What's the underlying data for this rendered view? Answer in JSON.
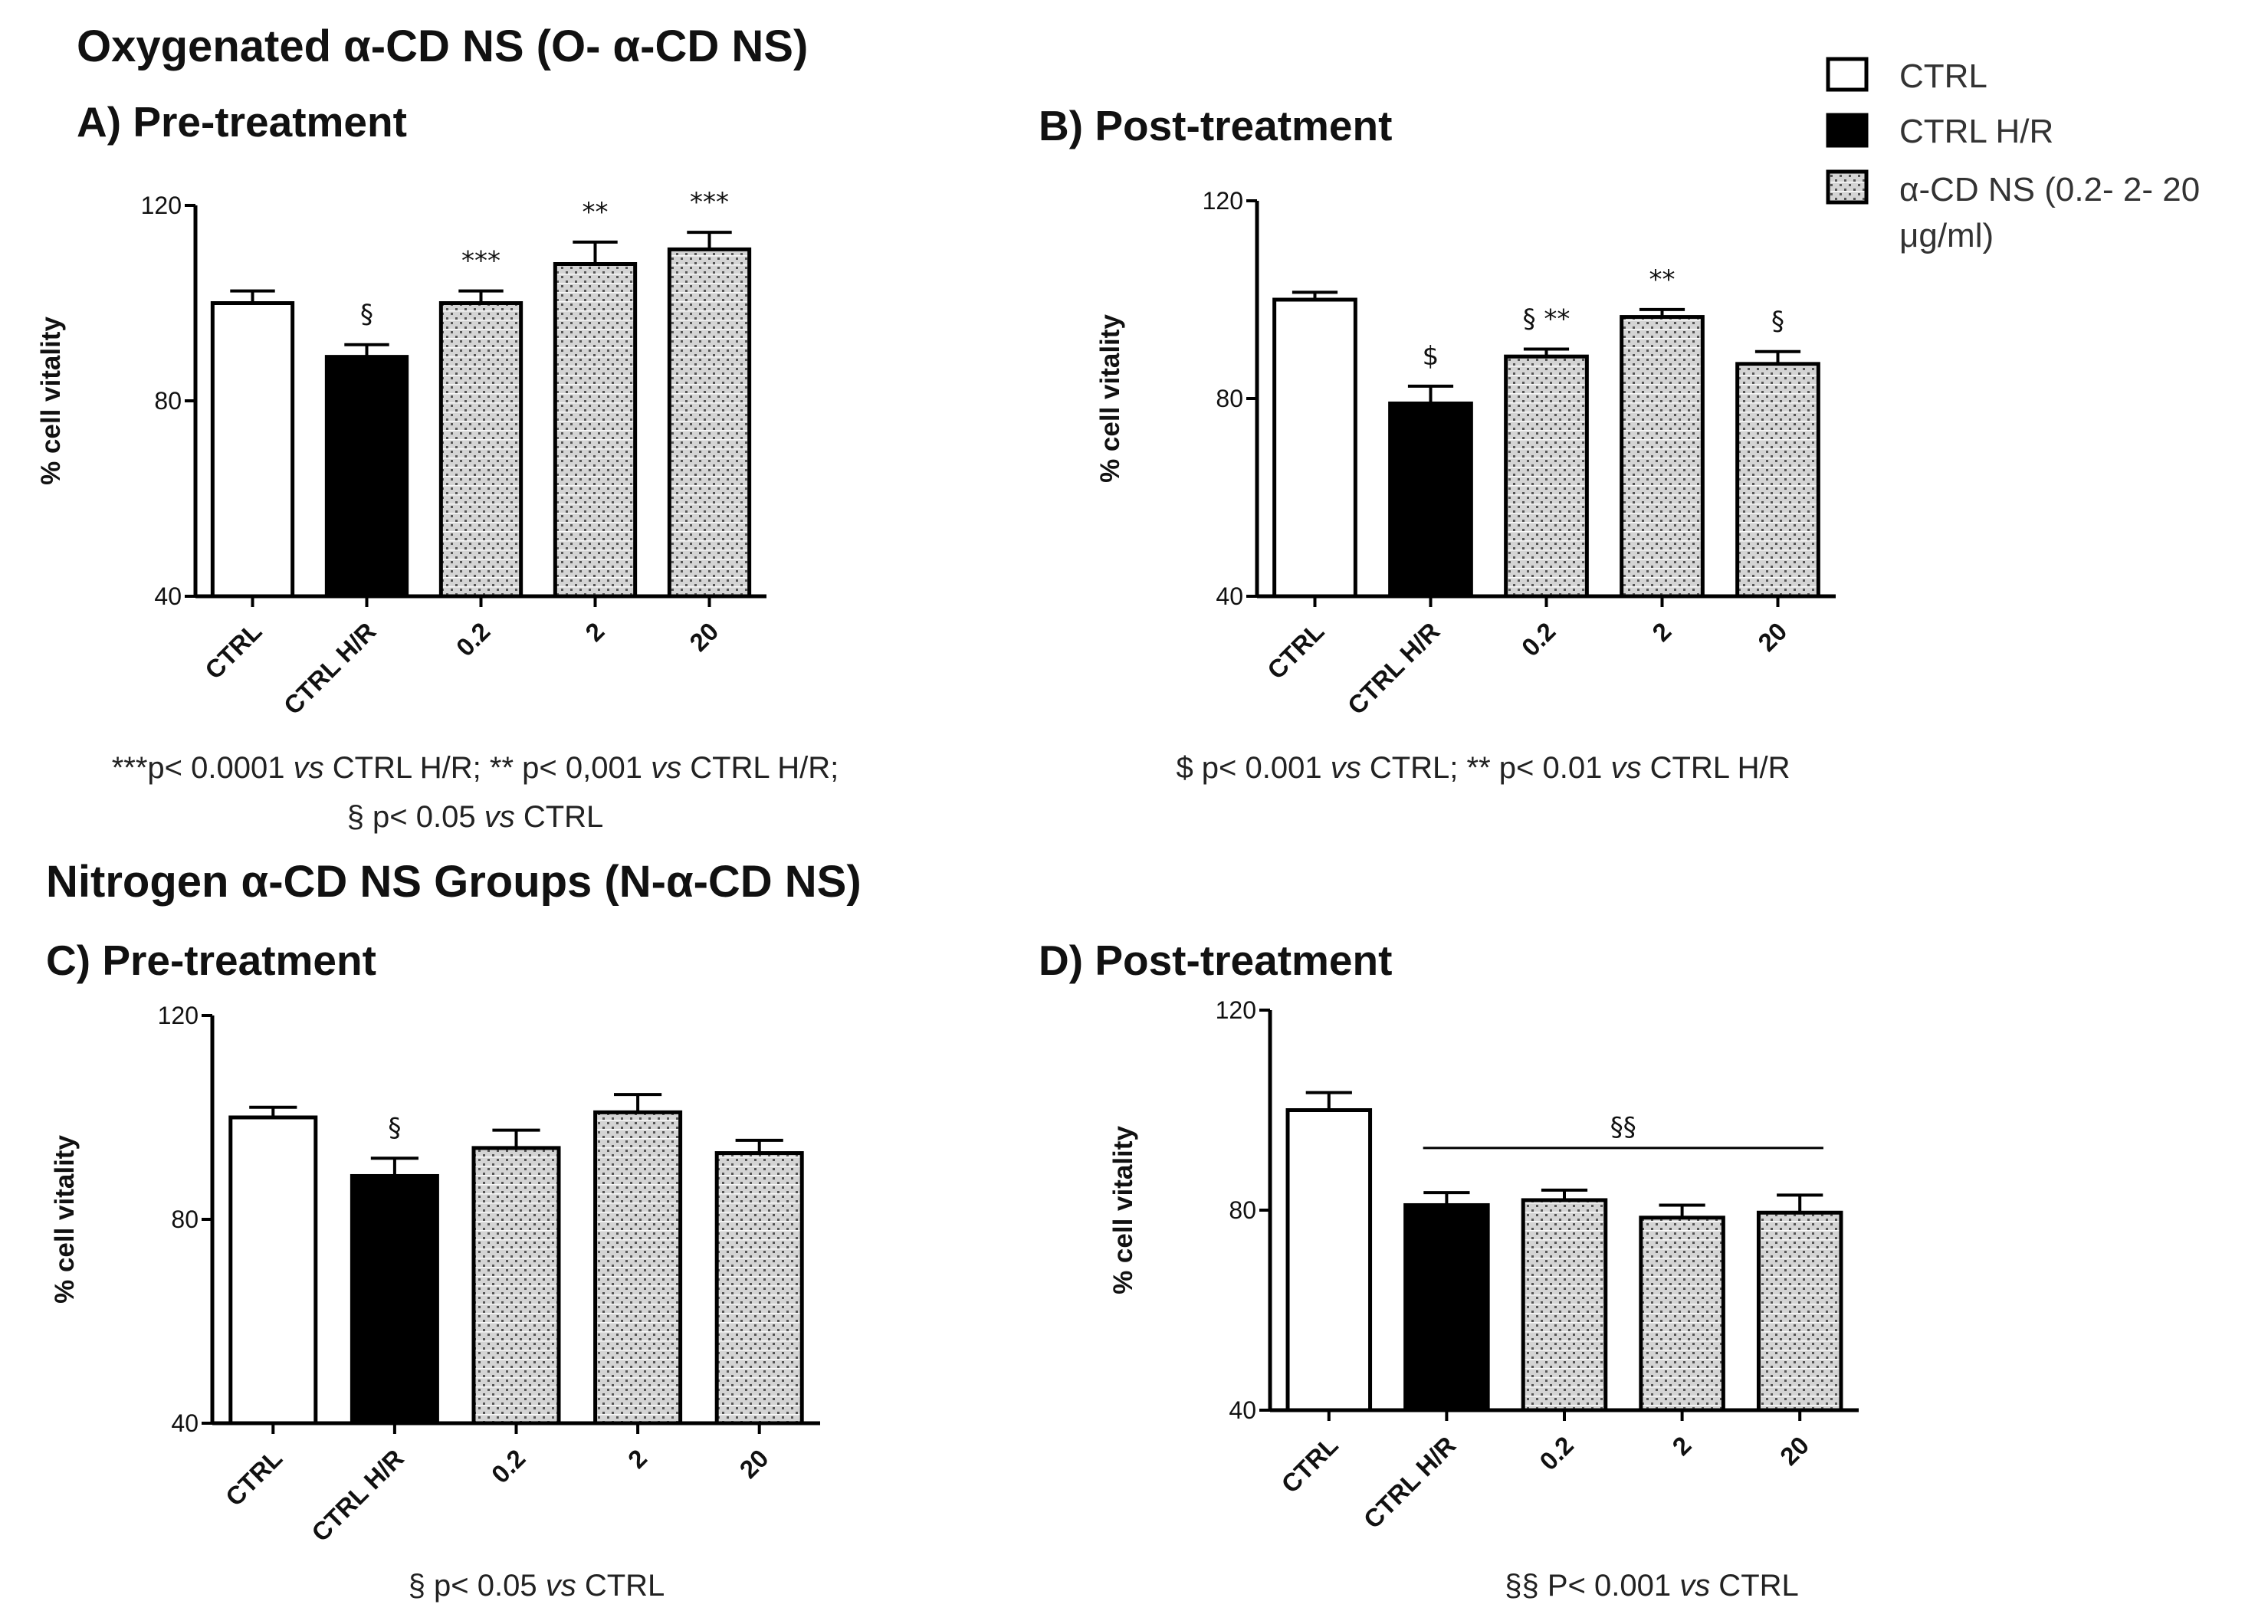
{
  "headers": {
    "oxygenated": "Oxygenated α-CD NS (O- α-CD NS)",
    "nitrogen": "Nitrogen α-CD NS Groups (N-α-CD NS)"
  },
  "legend": {
    "items": [
      {
        "label": "CTRL",
        "style": "white"
      },
      {
        "label": "CTRL H/R",
        "style": "black"
      },
      {
        "label": "α-CD NS (0.2- 2- 20",
        "label2": "μg/ml)",
        "style": "hatched"
      }
    ]
  },
  "colors": {
    "bar_fill_white": "#ffffff",
    "bar_fill_black": "#000000",
    "axis": "#000000",
    "hatch_bg": "#c8c8c8"
  },
  "chart_data": [
    {
      "id": "A",
      "type": "bar",
      "title": "A) Pre-treatment",
      "ylabel": "% cell vitality",
      "ylim": [
        40,
        120
      ],
      "yticks": [
        40,
        80,
        120
      ],
      "categories": [
        "CTRL",
        "CTRL H/R",
        "0.2",
        "2",
        "20"
      ],
      "values": [
        100,
        89,
        100,
        108,
        111
      ],
      "errors": [
        2.5,
        2.5,
        2.5,
        4.5,
        3.5
      ],
      "styles": [
        "white",
        "black",
        "hatched",
        "hatched",
        "hatched"
      ],
      "annotations": [
        "",
        "§",
        "***",
        "**",
        "***"
      ],
      "footnote": [
        "***p< 0.0001 vs CTRL H/R; ** p< 0,001 vs CTRL H/R;",
        "§ p< 0.05 vs CTRL"
      ]
    },
    {
      "id": "B",
      "type": "bar",
      "title": "B) Post-treatment",
      "ylabel": "% cell vitality",
      "ylim": [
        40,
        120
      ],
      "yticks": [
        40,
        80,
        120
      ],
      "categories": [
        "CTRL",
        "CTRL H/R",
        "0.2",
        "2",
        "20"
      ],
      "values": [
        100,
        79,
        88.5,
        96.5,
        87
      ],
      "errors": [
        1.5,
        3.5,
        1.5,
        1.5,
        2.5
      ],
      "styles": [
        "white",
        "black",
        "hatched",
        "hatched",
        "hatched"
      ],
      "annotations": [
        "",
        "$",
        "§ **",
        "**",
        "§"
      ],
      "footnote": [
        "$ p< 0.001 vs CTRL; ** p< 0.01 vs CTRL H/R"
      ]
    },
    {
      "id": "C",
      "type": "bar",
      "title": "C) Pre-treatment",
      "ylabel": "% cell vitality",
      "ylim": [
        40,
        120
      ],
      "yticks": [
        40,
        80,
        120
      ],
      "categories": [
        "CTRL",
        "CTRL H/R",
        "0.2",
        "2",
        "20"
      ],
      "values": [
        100,
        88.5,
        94,
        101,
        93
      ],
      "errors": [
        2,
        3.5,
        3.5,
        3.5,
        2.5
      ],
      "styles": [
        "white",
        "black",
        "hatched",
        "hatched",
        "hatched"
      ],
      "annotations": [
        "",
        "§",
        "",
        "",
        ""
      ],
      "footnote": [
        "§ p< 0.05 vs CTRL"
      ]
    },
    {
      "id": "D",
      "type": "bar",
      "title": "D) Post-treatment",
      "ylabel": "% cell vitality",
      "ylim": [
        40,
        120
      ],
      "yticks": [
        40,
        80,
        120
      ],
      "categories": [
        "CTRL",
        "CTRL H/R",
        "0.2",
        "2",
        "20"
      ],
      "values": [
        100,
        81,
        82,
        78.5,
        79.5
      ],
      "errors": [
        3.5,
        2.5,
        2,
        2.5,
        3.5
      ],
      "styles": [
        "white",
        "black",
        "hatched",
        "hatched",
        "hatched"
      ],
      "annotations": [
        "",
        "",
        "",
        "",
        ""
      ],
      "bracket": {
        "label": "§§",
        "from": 1,
        "to": 4
      },
      "footnote": [
        "§§ P< 0.001 vs CTRL"
      ]
    }
  ]
}
